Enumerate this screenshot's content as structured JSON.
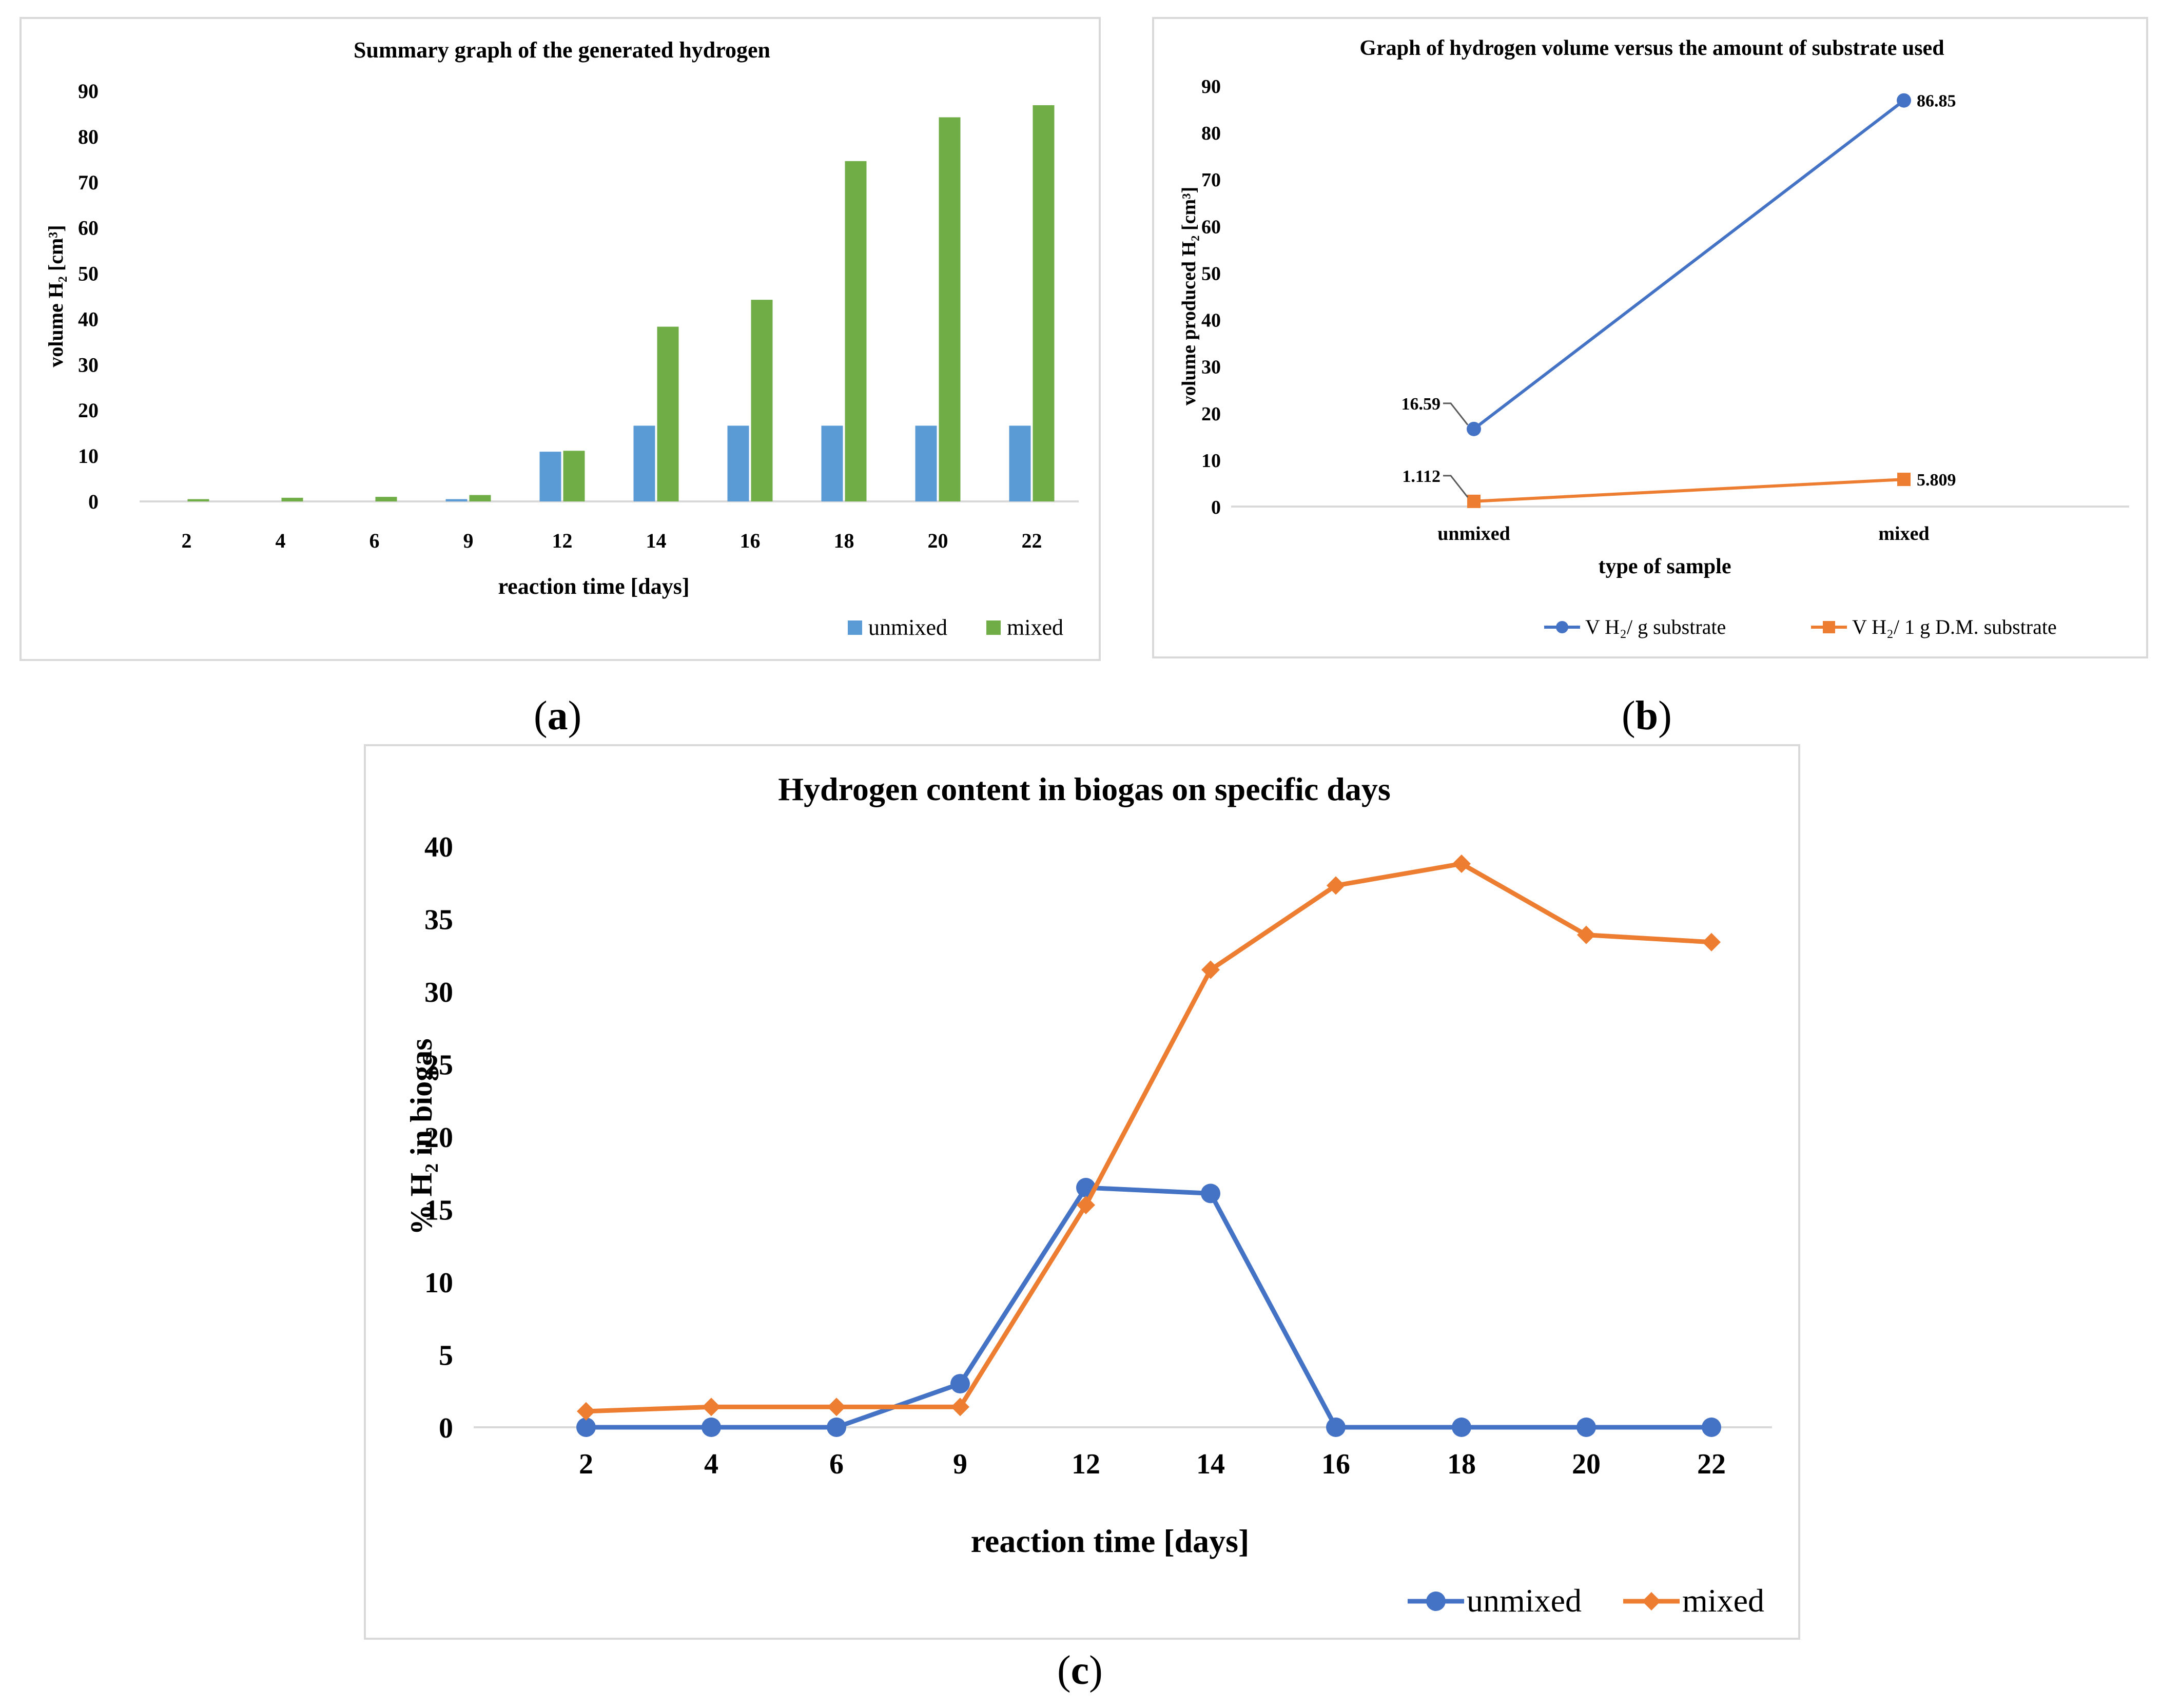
{
  "colors": {
    "unmixed_bar": "#5b9bd5",
    "mixed_bar": "#70ad47",
    "blue_line": "#4472c4",
    "orange_line": "#ed7d31",
    "grid": "#d9d9d9",
    "axis_text": "#000000"
  },
  "labels": {
    "a": {
      "open": "(",
      "letter": "a",
      "close": ")"
    },
    "b": {
      "open": "(",
      "letter": "b",
      "close": ")"
    },
    "c": {
      "open": "(",
      "letter": "c",
      "close": ")"
    }
  },
  "chart_data": [
    {
      "id": "a",
      "type": "bar",
      "title": "Summary graph of the generated hydrogen",
      "xlabel": "reaction time [days]",
      "ylabel": "volume H₂ [cm³]",
      "ylim": [
        0,
        90
      ],
      "yticks": [
        0,
        10,
        20,
        30,
        40,
        50,
        60,
        70,
        80,
        90
      ],
      "grid": false,
      "legend": "bottom-right",
      "categories": [
        "2",
        "4",
        "6",
        "9",
        "12",
        "14",
        "16",
        "18",
        "20",
        "22"
      ],
      "series": [
        {
          "name": "unmixed",
          "values": [
            0,
            0,
            0,
            0.5,
            10.9,
            16.6,
            16.6,
            16.6,
            16.6,
            16.6
          ]
        },
        {
          "name": "mixed",
          "values": [
            0.5,
            0.8,
            1.0,
            1.4,
            11.1,
            38.3,
            44.2,
            74.6,
            84.2,
            86.85
          ]
        }
      ]
    },
    {
      "id": "b",
      "type": "line",
      "title": "Graph of hydrogen volume versus the amount of substrate used",
      "xlabel": "type of sample",
      "ylabel": "volume produced H₂ [cm³]",
      "ylim": [
        0,
        90
      ],
      "yticks": [
        0,
        10,
        20,
        30,
        40,
        50,
        60,
        70,
        80,
        90
      ],
      "grid": false,
      "legend": "bottom",
      "categories": [
        "unmixed",
        "mixed"
      ],
      "series": [
        {
          "name": "V H₂/ g substrate",
          "values": [
            16.59,
            86.85
          ],
          "labels": [
            "16.59",
            "86.85"
          ]
        },
        {
          "name": "V H₂/ 1 g D.M. substrate",
          "values": [
            1.112,
            5.809
          ],
          "labels": [
            "1.112",
            "5.809"
          ]
        }
      ]
    },
    {
      "id": "c",
      "type": "line",
      "title": "Hydrogen content in biogas on specific days",
      "xlabel": "reaction time [days]",
      "ylabel": "% H₂ in biogas",
      "ylim": [
        0,
        40
      ],
      "yticks": [
        0,
        5,
        10,
        15,
        20,
        25,
        30,
        35,
        40
      ],
      "grid": false,
      "legend": "bottom-right",
      "categories": [
        "2",
        "4",
        "6",
        "9",
        "12",
        "14",
        "16",
        "18",
        "20",
        "22"
      ],
      "series": [
        {
          "name": "unmixed",
          "values": [
            0,
            0,
            0,
            3.0,
            16.5,
            16.1,
            0,
            0,
            0,
            0
          ]
        },
        {
          "name": "mixed",
          "values": [
            1.1,
            1.4,
            1.4,
            1.4,
            15.3,
            31.5,
            37.3,
            38.8,
            33.9,
            33.4
          ]
        }
      ]
    }
  ]
}
